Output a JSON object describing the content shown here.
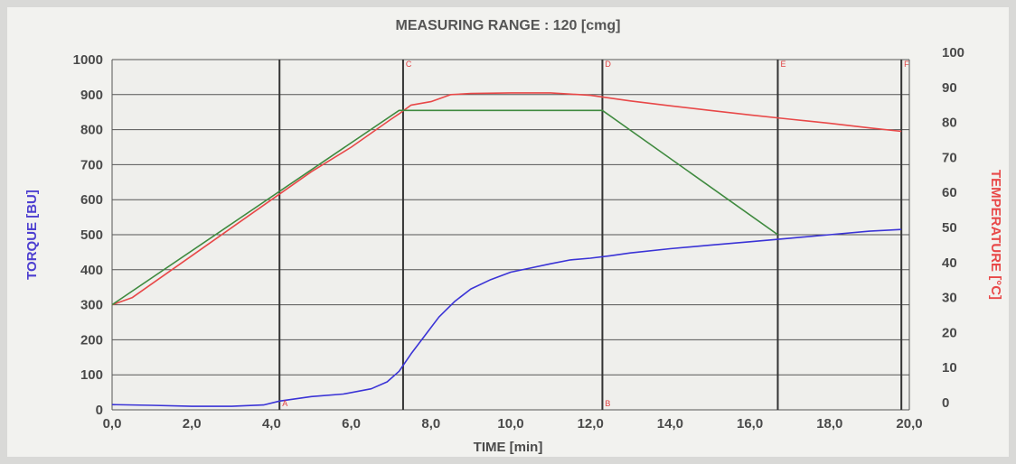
{
  "chart_data": {
    "type": "line",
    "title": "MEASURING RANGE : 120 [cmg]",
    "xlabel": "TIME  [min]",
    "ylabel_left": "TORQUE  [BU]",
    "ylabel_right": "TEMPERATURE  [°C]",
    "xlim": [
      0,
      20
    ],
    "ylim_left": [
      0,
      1000
    ],
    "ylim_right": [
      0,
      100
    ],
    "x_ticks": [
      "0,0",
      "2,0",
      "4,0",
      "6,0",
      "8,0",
      "10,0",
      "12,0",
      "14,0",
      "16,0",
      "18,0",
      "20,0"
    ],
    "y_left_ticks": [
      "0",
      "100",
      "200",
      "300",
      "400",
      "500",
      "600",
      "700",
      "800",
      "900",
      "1000"
    ],
    "y_right_ticks": [
      "0",
      "10",
      "20",
      "30",
      "40",
      "50",
      "60",
      "70",
      "80",
      "90",
      "100"
    ],
    "grid": true,
    "series": [
      {
        "key": "torque",
        "axis": "left",
        "color": "#3a33d6",
        "points": [
          [
            0,
            15
          ],
          [
            1,
            13
          ],
          [
            2,
            10
          ],
          [
            3,
            10
          ],
          [
            3.8,
            14
          ],
          [
            4.2,
            25
          ],
          [
            5,
            38
          ],
          [
            5.8,
            45
          ],
          [
            6.5,
            60
          ],
          [
            6.9,
            80
          ],
          [
            7.2,
            110
          ],
          [
            7.5,
            160
          ],
          [
            7.9,
            220
          ],
          [
            8.2,
            265
          ],
          [
            8.6,
            310
          ],
          [
            9,
            345
          ],
          [
            9.5,
            372
          ],
          [
            10,
            393
          ],
          [
            10.5,
            405
          ],
          [
            11,
            417
          ],
          [
            11.5,
            428
          ],
          [
            12,
            433
          ],
          [
            12.5,
            440
          ],
          [
            13,
            448
          ],
          [
            14,
            460
          ],
          [
            15,
            470
          ],
          [
            16,
            480
          ],
          [
            17,
            490
          ],
          [
            18,
            500
          ],
          [
            19,
            510
          ],
          [
            19.8,
            515
          ]
        ]
      },
      {
        "key": "temperature_measured",
        "axis": "right",
        "color": "#e84848",
        "points": [
          [
            0,
            30
          ],
          [
            0.5,
            32
          ],
          [
            1,
            36
          ],
          [
            2,
            44
          ],
          [
            3,
            52
          ],
          [
            4,
            60
          ],
          [
            5,
            68
          ],
          [
            6,
            75
          ],
          [
            7,
            83
          ],
          [
            7.2,
            84.5
          ],
          [
            7.5,
            87
          ],
          [
            8,
            88
          ],
          [
            8.5,
            90
          ],
          [
            9,
            90.3
          ],
          [
            10,
            90.5
          ],
          [
            11,
            90.5
          ],
          [
            12,
            89.8
          ],
          [
            13,
            88.2
          ],
          [
            14,
            86.8
          ],
          [
            15,
            85.5
          ],
          [
            16,
            84.2
          ],
          [
            17,
            83
          ],
          [
            18,
            81.8
          ],
          [
            19,
            80.5
          ],
          [
            19.8,
            79.5
          ]
        ]
      },
      {
        "key": "temperature_profile",
        "axis": "right",
        "color": "#3f8a3f",
        "points": [
          [
            0,
            30
          ],
          [
            7.2,
            85.5
          ],
          [
            12.3,
            85.5
          ],
          [
            16.7,
            50
          ]
        ]
      }
    ],
    "markers": [
      {
        "label": "A",
        "x": 4.2,
        "position": "bottom"
      },
      {
        "label": "B",
        "x": 12.3,
        "position": "bottom"
      },
      {
        "label": "C",
        "x": 7.3,
        "position": "top"
      },
      {
        "label": "D",
        "x": 12.3,
        "position": "top"
      },
      {
        "label": "E",
        "x": 16.7,
        "position": "top"
      },
      {
        "label": "F",
        "x": 19.8,
        "position": "top"
      }
    ]
  }
}
